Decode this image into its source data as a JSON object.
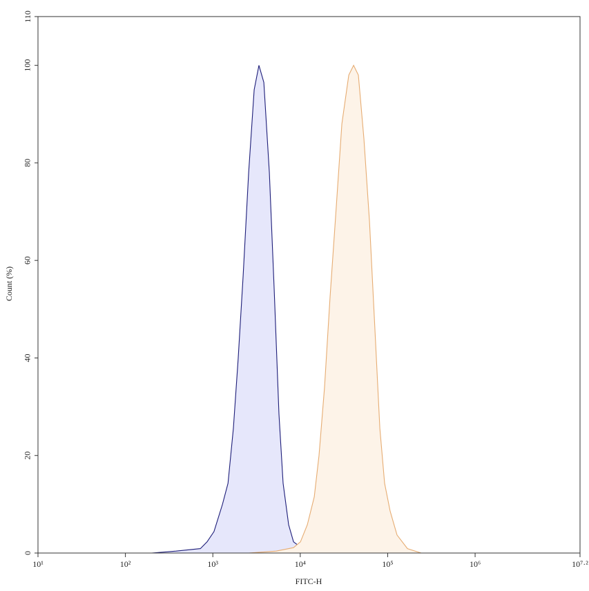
{
  "chart_data": {
    "type": "histogram-overlay",
    "x_label": "FITC-H",
    "y_label": "Count  (%)",
    "xscale": "log",
    "xlim": [
      10,
      15848931.924611142
    ],
    "ylim": [
      0,
      110
    ],
    "xticks": [
      {
        "value": 10,
        "label": "10¹"
      },
      {
        "value": 100,
        "label": "10²"
      },
      {
        "value": 1000,
        "label": "10³"
      },
      {
        "value": 10000,
        "label": "10⁴"
      },
      {
        "value": 100000,
        "label": "10⁵"
      },
      {
        "value": 1000000,
        "label": "10⁶"
      },
      {
        "value": 15848931.924611142,
        "label": "10⁷·²"
      }
    ],
    "yticks": [
      0,
      20,
      40,
      60,
      80,
      100,
      110
    ],
    "series": [
      {
        "color": "#1c1c78",
        "fill": "#e6e7fb",
        "x": [
          200,
          380,
          720,
          860,
          1030,
          1290,
          1490,
          1720,
          1950,
          2220,
          2570,
          2970,
          3370,
          3830,
          4430,
          5030,
          5710,
          6370,
          7360,
          8370,
          11000,
          32700,
          97500,
          140000
        ],
        "values": [
          0,
          0.4,
          0.9,
          2.3,
          4.4,
          10,
          14.3,
          25.6,
          39.8,
          56.8,
          78,
          95,
          100,
          96.5,
          78,
          54,
          28.5,
          14.3,
          5.8,
          2.3,
          0.7,
          0.3,
          0.1,
          0
        ]
      },
      {
        "color": "#e6ac72",
        "fill": "#fdf3e8",
        "x": [
          2570,
          5310,
          8370,
          10050,
          12050,
          14450,
          16400,
          18970,
          21940,
          25840,
          29900,
          35900,
          40740,
          46240,
          53460,
          61900,
          71590,
          81300,
          92300,
          106700,
          127900,
          168300,
          242000
        ],
        "values": [
          0,
          0.4,
          1.1,
          2.3,
          5.8,
          11.5,
          20,
          34,
          52.5,
          71,
          88,
          98,
          100,
          98,
          85,
          68,
          45.5,
          25.6,
          14.3,
          8.6,
          3.7,
          0.9,
          0
        ]
      }
    ]
  }
}
